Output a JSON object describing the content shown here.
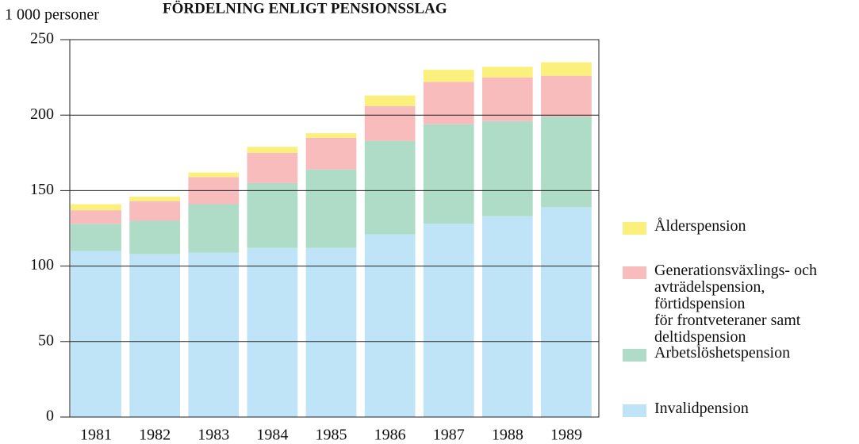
{
  "chart_data": {
    "type": "stacked_bar",
    "title": "FÖRDELNING ENLIGT PENSIONSSLAG",
    "y_label": "1 000 personer",
    "categories": [
      "1981",
      "1982",
      "1983",
      "1984",
      "1985",
      "1986",
      "1987",
      "1988",
      "1989"
    ],
    "series": [
      {
        "name": "Invalidpension",
        "color": "#bfe3f7",
        "values": [
          110,
          108,
          109,
          112,
          112,
          121,
          128,
          133,
          139
        ]
      },
      {
        "name": "Arbetslöshetspension",
        "color": "#aedcc6",
        "values": [
          18,
          22,
          32,
          43,
          52,
          62,
          66,
          63,
          60
        ]
      },
      {
        "name": "Generationsväxlings- och\navträdelspension,\nförtidspension\nför frontveteraner samt\ndeltidspension",
        "color": "#f8bcbc",
        "values": [
          9,
          13,
          18,
          20,
          21,
          23,
          28,
          29,
          27
        ]
      },
      {
        "name": "Ålderspension",
        "color": "#fbf07c",
        "values": [
          4,
          3,
          3,
          4,
          3,
          7,
          8,
          7,
          9
        ]
      }
    ],
    "ylim": [
      0,
      250
    ],
    "yticks": [
      0,
      50,
      100,
      150,
      200,
      250
    ],
    "grid": true
  }
}
